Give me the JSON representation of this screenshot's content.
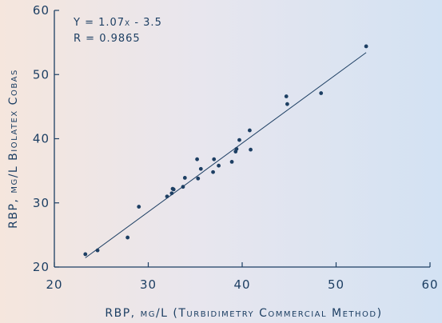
{
  "chart_data": {
    "type": "scatter",
    "title": "",
    "xlabel": "RBP, mg/L (Turbidimetry Commercial Method)",
    "ylabel": "RBP, mg/L Biolatex Cobas",
    "xlim": [
      20,
      60
    ],
    "ylim": [
      20,
      60
    ],
    "xticks": [
      "20",
      "30",
      "40",
      "50",
      "60"
    ],
    "yticks": [
      "20",
      "30",
      "40",
      "50",
      "60"
    ],
    "grid": false,
    "annotations": [
      "Y = 1.07x - 3.5",
      "R = 0.9865"
    ],
    "regression": {
      "slope": 1.07,
      "intercept": -3.5,
      "x_range": [
        23.3,
        53.2
      ]
    },
    "points": [
      {
        "x": 23.3,
        "y": 22.0
      },
      {
        "x": 24.6,
        "y": 22.6
      },
      {
        "x": 27.8,
        "y": 24.6
      },
      {
        "x": 29.0,
        "y": 29.4
      },
      {
        "x": 32.0,
        "y": 31.0
      },
      {
        "x": 32.5,
        "y": 31.5
      },
      {
        "x": 32.6,
        "y": 32.2
      },
      {
        "x": 32.7,
        "y": 32.1
      },
      {
        "x": 33.7,
        "y": 32.5
      },
      {
        "x": 33.9,
        "y": 33.9
      },
      {
        "x": 35.2,
        "y": 36.8
      },
      {
        "x": 35.3,
        "y": 33.8
      },
      {
        "x": 35.6,
        "y": 35.3
      },
      {
        "x": 36.9,
        "y": 34.8
      },
      {
        "x": 37.0,
        "y": 36.8
      },
      {
        "x": 37.5,
        "y": 35.8
      },
      {
        "x": 38.9,
        "y": 36.4
      },
      {
        "x": 39.3,
        "y": 38.0
      },
      {
        "x": 39.4,
        "y": 38.4
      },
      {
        "x": 39.7,
        "y": 39.8
      },
      {
        "x": 40.8,
        "y": 41.3
      },
      {
        "x": 40.9,
        "y": 38.3
      },
      {
        "x": 44.7,
        "y": 46.6
      },
      {
        "x": 44.8,
        "y": 45.4
      },
      {
        "x": 48.4,
        "y": 47.1
      },
      {
        "x": 53.2,
        "y": 54.4
      }
    ]
  },
  "colors": {
    "axis": "#1d3f63",
    "point": "#1d3f63",
    "line": "#1d3f63"
  }
}
